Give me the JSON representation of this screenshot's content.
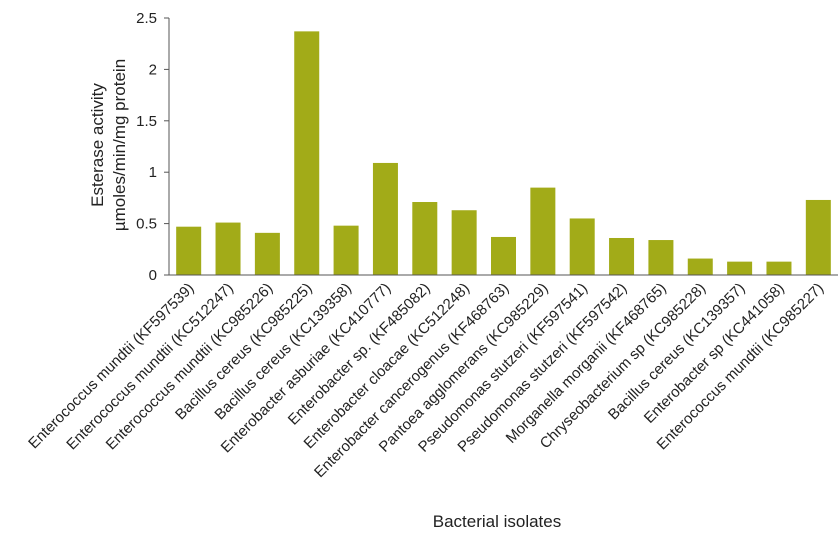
{
  "chart_data": {
    "type": "bar",
    "title": "",
    "xlabel": "Bacterial isolates",
    "ylabel_lines": [
      "Esterase activity",
      "µmoles/min/mg protein"
    ],
    "ylim": [
      0,
      2.5
    ],
    "yticks": [
      "0",
      "0.5",
      "1",
      "1.5",
      "2",
      "2.5"
    ],
    "grid": false,
    "bar_color": "#a2ab18",
    "categories": [
      "Enterococcus mundtii (KF597539)",
      "Enterococcus mundtii (KC512247)",
      "Enterococcus mundtii (KC985226)",
      "Bacillus cereus (KC985225)",
      "Bacillus cereus (KC139358)",
      "Enterobacter asburiae (KC410777)",
      "Enterobacter sp. (KF485082)",
      "Enterobacter cloacae (KC512248)",
      "Enterobacter cancerogenus (KF468763)",
      "Pantoea agglomerans (KC985229)",
      "Pseudomonas stutzeri (KF597541)",
      "Pseudomonas stutzeri (KF597542)",
      "Morganella morganii (KF468765)",
      "Chryseobacterium sp (KC985228)",
      "Bacillus cereus (KC139357)",
      "Enterobacter sp (KC441058)",
      "Enterococcus mundtii (KC985227)"
    ],
    "values": [
      0.47,
      0.51,
      0.41,
      2.37,
      0.48,
      1.09,
      0.71,
      0.63,
      0.37,
      0.85,
      0.55,
      0.36,
      0.34,
      0.16,
      0.13,
      0.13,
      0.73
    ]
  }
}
